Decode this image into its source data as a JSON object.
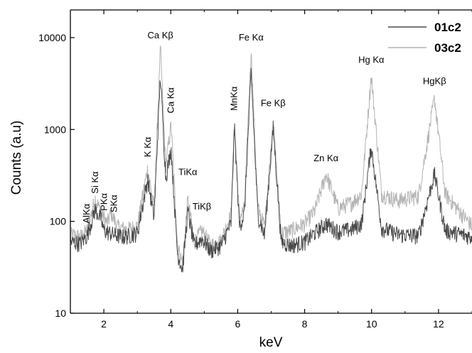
{
  "chart_data": {
    "type": "line",
    "title": "",
    "xlabel": "keV",
    "ylabel": "Counts (a.u)",
    "xlim": [
      1,
      13
    ],
    "ylim": [
      10,
      20000
    ],
    "y_scale": "log",
    "grid": false,
    "legend_position": "top-right",
    "x_ticks": [
      2,
      4,
      6,
      8,
      10,
      12
    ],
    "x_tick_labels": [
      "2",
      "4",
      "6",
      "8",
      "10",
      "12"
    ],
    "y_ticks": [
      10,
      100,
      1000,
      10000
    ],
    "y_tick_labels": [
      "10",
      "100",
      "1000",
      "10000"
    ],
    "series": [
      {
        "name": "01c2",
        "color": "#4a4a4a",
        "points": [
          [
            1.0,
            60
          ],
          [
            1.3,
            58
          ],
          [
            1.5,
            70
          ],
          [
            1.74,
            135
          ],
          [
            1.9,
            110
          ],
          [
            2.0,
            80
          ],
          [
            2.3,
            72
          ],
          [
            2.6,
            68
          ],
          [
            3.0,
            75
          ],
          [
            3.31,
            290
          ],
          [
            3.5,
            110
          ],
          [
            3.69,
            3900
          ],
          [
            3.85,
            300
          ],
          [
            4.01,
            620
          ],
          [
            4.2,
            45
          ],
          [
            4.35,
            30
          ],
          [
            4.51,
            130
          ],
          [
            4.7,
            55
          ],
          [
            4.93,
            65
          ],
          [
            5.2,
            48
          ],
          [
            5.5,
            55
          ],
          [
            5.8,
            95
          ],
          [
            5.9,
            1100
          ],
          [
            6.05,
            90
          ],
          [
            6.2,
            120
          ],
          [
            6.4,
            4300
          ],
          [
            6.6,
            120
          ],
          [
            6.8,
            70
          ],
          [
            7.06,
            1050
          ],
          [
            7.3,
            60
          ],
          [
            7.6,
            55
          ],
          [
            8.0,
            60
          ],
          [
            8.3,
            75
          ],
          [
            8.64,
            95
          ],
          [
            9.0,
            78
          ],
          [
            9.4,
            82
          ],
          [
            9.7,
            95
          ],
          [
            9.99,
            660
          ],
          [
            10.3,
            85
          ],
          [
            10.8,
            72
          ],
          [
            11.4,
            70
          ],
          [
            11.88,
            330
          ],
          [
            12.2,
            80
          ],
          [
            12.7,
            72
          ],
          [
            13.0,
            68
          ]
        ]
      },
      {
        "name": "03c2",
        "color": "#b4b4b4",
        "points": [
          [
            1.0,
            72
          ],
          [
            1.3,
            68
          ],
          [
            1.5,
            80
          ],
          [
            1.74,
            180
          ],
          [
            1.9,
            130
          ],
          [
            2.1,
            95
          ],
          [
            2.22,
            125
          ],
          [
            2.4,
            88
          ],
          [
            2.7,
            82
          ],
          [
            3.0,
            90
          ],
          [
            3.31,
            380
          ],
          [
            3.5,
            140
          ],
          [
            3.69,
            7800
          ],
          [
            3.85,
            400
          ],
          [
            4.01,
            1150
          ],
          [
            4.2,
            55
          ],
          [
            4.35,
            35
          ],
          [
            4.51,
            175
          ],
          [
            4.7,
            60
          ],
          [
            4.93,
            80
          ],
          [
            5.2,
            55
          ],
          [
            5.5,
            62
          ],
          [
            5.8,
            120
          ],
          [
            5.9,
            1200
          ],
          [
            6.05,
            110
          ],
          [
            6.2,
            140
          ],
          [
            6.4,
            7500
          ],
          [
            6.6,
            140
          ],
          [
            6.8,
            90
          ],
          [
            7.06,
            1200
          ],
          [
            7.3,
            75
          ],
          [
            7.6,
            80
          ],
          [
            8.0,
            95
          ],
          [
            8.3,
            130
          ],
          [
            8.64,
            330
          ],
          [
            9.0,
            140
          ],
          [
            9.4,
            160
          ],
          [
            9.7,
            200
          ],
          [
            9.99,
            3900
          ],
          [
            10.3,
            200
          ],
          [
            10.8,
            170
          ],
          [
            11.4,
            190
          ],
          [
            11.88,
            2200
          ],
          [
            12.2,
            200
          ],
          [
            12.7,
            120
          ],
          [
            13.0,
            90
          ]
        ]
      }
    ],
    "annotations": [
      {
        "text": "AlKα",
        "x": 1.49,
        "y": 95
      },
      {
        "text": "Si Kα",
        "x": 1.74,
        "y": 200
      },
      {
        "text": "PKα",
        "x": 2.01,
        "y": 130
      },
      {
        "text": "SKα",
        "x": 2.31,
        "y": 125
      },
      {
        "text": "K Kα",
        "x": 3.31,
        "y": 500
      },
      {
        "text": "Ca Kβ",
        "x": 3.69,
        "y": 9800
      },
      {
        "text": "Ca Kα",
        "x": 4.0,
        "y": 1500
      },
      {
        "text": "TiKα",
        "x": 4.51,
        "y": 320
      },
      {
        "text": "TiKβ",
        "x": 4.93,
        "y": 135
      },
      {
        "text": "MnKα",
        "x": 5.9,
        "y": 1600
      },
      {
        "text": "Fe Kα",
        "x": 6.4,
        "y": 9300
      },
      {
        "text": "Fe Kβ",
        "x": 7.06,
        "y": 1800
      },
      {
        "text": "Zn Kα",
        "x": 8.64,
        "y": 450
      },
      {
        "text": "Hg Kα",
        "x": 9.99,
        "y": 5300
      },
      {
        "text": "HgKβ",
        "x": 11.88,
        "y": 3100
      }
    ]
  }
}
